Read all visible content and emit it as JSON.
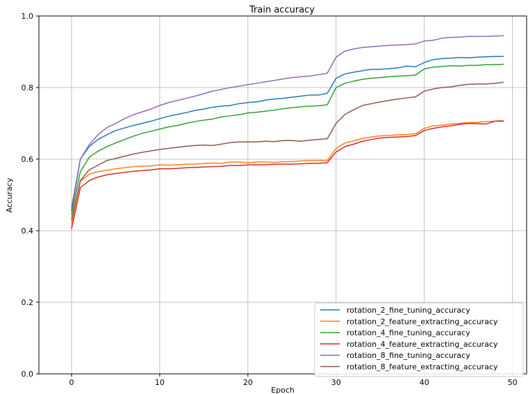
{
  "chart_data": {
    "type": "line",
    "title": "Train accuracy",
    "xlabel": "Epoch",
    "ylabel": "Accuracy",
    "xlim": [
      -3.7,
      51.6
    ],
    "ylim": [
      0.0,
      1.0
    ],
    "xticks": [
      0,
      10,
      20,
      30,
      40,
      50
    ],
    "yticks": [
      0.0,
      0.2,
      0.4,
      0.6,
      0.8,
      1.0
    ],
    "ytick_labels": [
      "0.0",
      "0.2",
      "0.4",
      "0.6",
      "0.8",
      "1.0"
    ],
    "grid": true,
    "legend_position": "lower-right",
    "x": [
      0,
      1,
      2,
      3,
      4,
      5,
      6,
      7,
      8,
      9,
      10,
      11,
      12,
      13,
      14,
      15,
      16,
      17,
      18,
      19,
      20,
      21,
      22,
      23,
      24,
      25,
      26,
      27,
      28,
      29,
      30,
      31,
      32,
      33,
      34,
      35,
      36,
      37,
      38,
      39,
      40,
      41,
      42,
      43,
      44,
      45,
      46,
      47,
      48,
      49
    ],
    "series": [
      {
        "name": "rotation_2_fine_tuning_accuracy",
        "color": "#1f77b4",
        "values": [
          0.455,
          0.6,
          0.635,
          0.655,
          0.668,
          0.68,
          0.687,
          0.694,
          0.7,
          0.706,
          0.713,
          0.72,
          0.725,
          0.73,
          0.736,
          0.74,
          0.745,
          0.748,
          0.75,
          0.755,
          0.758,
          0.76,
          0.765,
          0.768,
          0.77,
          0.773,
          0.776,
          0.779,
          0.779,
          0.784,
          0.826,
          0.838,
          0.843,
          0.847,
          0.851,
          0.851,
          0.853,
          0.855,
          0.86,
          0.858,
          0.87,
          0.878,
          0.881,
          0.882,
          0.884,
          0.883,
          0.885,
          0.886,
          0.887,
          0.887
        ]
      },
      {
        "name": "rotation_2_feature_extracting_accuracy",
        "color": "#ff7f0e",
        "values": [
          0.42,
          0.538,
          0.558,
          0.565,
          0.569,
          0.573,
          0.576,
          0.579,
          0.58,
          0.581,
          0.584,
          0.583,
          0.584,
          0.586,
          0.586,
          0.588,
          0.589,
          0.588,
          0.592,
          0.592,
          0.59,
          0.592,
          0.592,
          0.591,
          0.593,
          0.593,
          0.595,
          0.596,
          0.596,
          0.596,
          0.63,
          0.645,
          0.651,
          0.658,
          0.662,
          0.665,
          0.666,
          0.668,
          0.669,
          0.671,
          0.686,
          0.693,
          0.695,
          0.698,
          0.7,
          0.702,
          0.703,
          0.705,
          0.706,
          0.708
        ]
      },
      {
        "name": "rotation_4_fine_tuning_accuracy",
        "color": "#2ca02c",
        "values": [
          0.445,
          0.565,
          0.605,
          0.622,
          0.635,
          0.645,
          0.655,
          0.664,
          0.672,
          0.678,
          0.684,
          0.69,
          0.694,
          0.7,
          0.705,
          0.709,
          0.712,
          0.718,
          0.721,
          0.724,
          0.729,
          0.731,
          0.734,
          0.737,
          0.741,
          0.744,
          0.746,
          0.748,
          0.749,
          0.752,
          0.8,
          0.812,
          0.818,
          0.823,
          0.826,
          0.828,
          0.83,
          0.832,
          0.833,
          0.835,
          0.852,
          0.857,
          0.859,
          0.861,
          0.86,
          0.862,
          0.862,
          0.864,
          0.864,
          0.865
        ]
      },
      {
        "name": "rotation_4_feature_extracting_accuracy",
        "color": "#d62728",
        "values": [
          0.405,
          0.52,
          0.54,
          0.55,
          0.556,
          0.56,
          0.563,
          0.566,
          0.568,
          0.57,
          0.573,
          0.573,
          0.574,
          0.576,
          0.577,
          0.578,
          0.579,
          0.58,
          0.582,
          0.582,
          0.584,
          0.584,
          0.584,
          0.586,
          0.586,
          0.586,
          0.587,
          0.588,
          0.588,
          0.59,
          0.62,
          0.635,
          0.642,
          0.65,
          0.655,
          0.659,
          0.661,
          0.662,
          0.663,
          0.666,
          0.68,
          0.686,
          0.69,
          0.693,
          0.697,
          0.7,
          0.699,
          0.698,
          0.706,
          0.706
        ]
      },
      {
        "name": "rotation_8_fine_tuning_accuracy",
        "color": "#9467bd",
        "values": [
          0.465,
          0.6,
          0.64,
          0.668,
          0.688,
          0.7,
          0.713,
          0.724,
          0.732,
          0.74,
          0.75,
          0.758,
          0.764,
          0.77,
          0.776,
          0.783,
          0.79,
          0.795,
          0.8,
          0.804,
          0.808,
          0.812,
          0.816,
          0.82,
          0.824,
          0.828,
          0.83,
          0.832,
          0.836,
          0.84,
          0.885,
          0.902,
          0.908,
          0.912,
          0.914,
          0.916,
          0.918,
          0.919,
          0.92,
          0.922,
          0.93,
          0.932,
          0.938,
          0.94,
          0.941,
          0.943,
          0.943,
          0.943,
          0.944,
          0.945
        ]
      },
      {
        "name": "rotation_8_feature_extracting_accuracy",
        "color": "#8c564b",
        "values": [
          0.43,
          0.54,
          0.57,
          0.583,
          0.596,
          0.602,
          0.608,
          0.614,
          0.619,
          0.623,
          0.627,
          0.63,
          0.633,
          0.636,
          0.638,
          0.639,
          0.638,
          0.642,
          0.646,
          0.648,
          0.648,
          0.648,
          0.65,
          0.649,
          0.652,
          0.652,
          0.65,
          0.653,
          0.655,
          0.657,
          0.7,
          0.725,
          0.738,
          0.75,
          0.755,
          0.76,
          0.764,
          0.768,
          0.771,
          0.774,
          0.79,
          0.796,
          0.8,
          0.802,
          0.806,
          0.809,
          0.81,
          0.81,
          0.812,
          0.815
        ]
      }
    ]
  }
}
